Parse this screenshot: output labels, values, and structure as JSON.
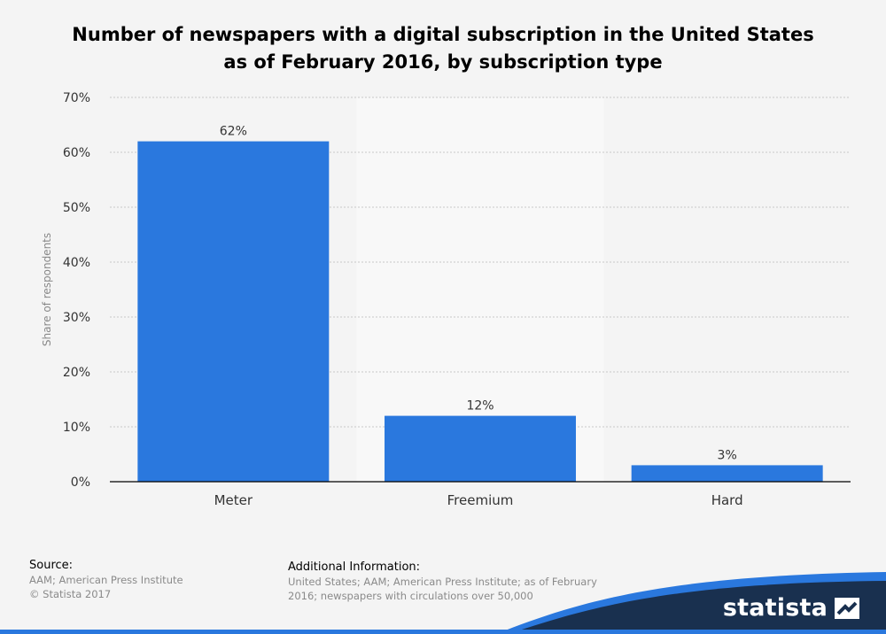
{
  "chart_data": {
    "type": "bar",
    "title": "Number of newspapers with a digital subscription in the United States",
    "subtitle": "as of February 2016, by subscription type",
    "categories": [
      "Meter",
      "Freemium",
      "Hard"
    ],
    "values": [
      62,
      12,
      3
    ],
    "data_labels": [
      "62%",
      "12%",
      "3%"
    ],
    "xlabel": "",
    "ylabel": "Share of respondents",
    "ylim": [
      0,
      70
    ],
    "yticks": [
      0,
      10,
      20,
      30,
      40,
      50,
      60,
      70
    ],
    "ytick_labels": [
      "0%",
      "10%",
      "20%",
      "30%",
      "40%",
      "50%",
      "60%",
      "70%"
    ],
    "grid": true,
    "legend": "none",
    "highlight_category": "Freemium",
    "colors": {
      "bar": "#2a78de",
      "highlight_band": "#f8f8f8",
      "grid": "#c8c8c8",
      "axis": "#000000",
      "text": "#333333",
      "footer_wave": "#19304f",
      "footer_wave_accent": "#2a78de"
    }
  },
  "footer": {
    "source_heading": "Source:",
    "source_line1": "AAM; American Press Institute",
    "source_line2": "© Statista 2017",
    "info_heading": "Additional Information:",
    "info_line1": "United States; AAM; American Press Institute; as of February",
    "info_line2": "2016; newspapers with circulations over 50,000"
  },
  "brand": {
    "name": "statista",
    "icon": "statista-logo-icon"
  }
}
